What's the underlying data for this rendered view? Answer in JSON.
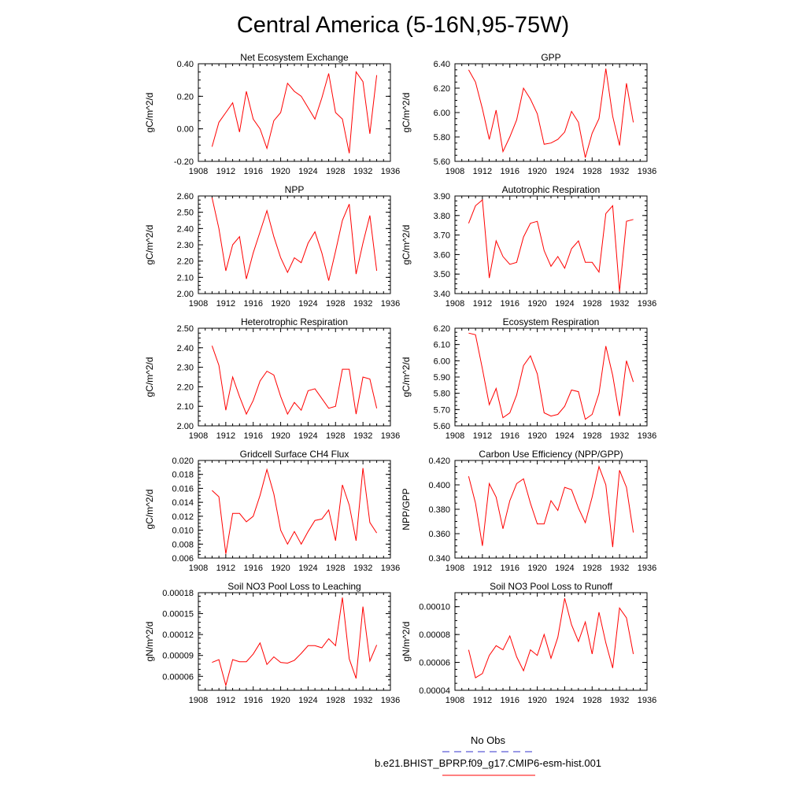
{
  "title": "Central America (5-16N,95-75W)",
  "legend": {
    "entries": [
      {
        "label": "No Obs",
        "color": "#3333cc",
        "dash": true
      },
      {
        "label": "b.e21.BHIST_BPRP.f09_g17.CMIP6-esm-hist.001",
        "color": "#ff0000",
        "dash": false
      }
    ]
  },
  "chart_data": [
    {
      "type": "line",
      "title": "Net Ecosystem Exchange",
      "ylabel": "gC/m^2/d",
      "x_ticks": [
        "1908",
        "1912",
        "1916",
        "1920",
        "1924",
        "1928",
        "1932",
        "1936"
      ],
      "xlim": [
        1908,
        1936
      ],
      "y_ticks": [
        "-0.20",
        "0.00",
        "0.20",
        "0.40"
      ],
      "ylim": [
        -0.2,
        0.4
      ],
      "series": [
        {
          "color": "#ff0000",
          "x": [
            1910,
            1911,
            1912,
            1913,
            1914,
            1915,
            1916,
            1917,
            1918,
            1919,
            1920,
            1921,
            1922,
            1923,
            1924,
            1925,
            1926,
            1927,
            1928,
            1929,
            1930,
            1931,
            1932,
            1933,
            1934
          ],
          "values": [
            -0.11,
            0.04,
            0.1,
            0.16,
            -0.02,
            0.23,
            0.06,
            0.0,
            -0.12,
            0.05,
            0.1,
            0.28,
            0.23,
            0.2,
            0.13,
            0.06,
            0.19,
            0.34,
            0.1,
            0.06,
            -0.15,
            0.35,
            0.29,
            -0.03,
            0.33
          ]
        }
      ]
    },
    {
      "type": "line",
      "title": "GPP",
      "ylabel": "gC/m^2/d",
      "x_ticks": [
        "1908",
        "1912",
        "1916",
        "1920",
        "1924",
        "1928",
        "1932",
        "1936"
      ],
      "xlim": [
        1908,
        1936
      ],
      "y_ticks": [
        "5.60",
        "5.80",
        "6.00",
        "6.20",
        "6.40"
      ],
      "ylim": [
        5.6,
        6.4
      ],
      "series": [
        {
          "color": "#ff0000",
          "x": [
            1910,
            1911,
            1912,
            1913,
            1914,
            1915,
            1916,
            1917,
            1918,
            1919,
            1920,
            1921,
            1922,
            1923,
            1924,
            1925,
            1926,
            1927,
            1928,
            1929,
            1930,
            1931,
            1932,
            1933,
            1934
          ],
          "values": [
            6.35,
            6.25,
            6.03,
            5.78,
            6.02,
            5.68,
            5.8,
            5.94,
            6.2,
            6.11,
            5.99,
            5.74,
            5.75,
            5.78,
            5.84,
            6.01,
            5.92,
            5.63,
            5.83,
            5.95,
            6.36,
            5.97,
            5.73,
            6.24,
            5.92
          ]
        }
      ]
    },
    {
      "type": "line",
      "title": "NPP",
      "ylabel": "gC/m^2/d",
      "x_ticks": [
        "1908",
        "1912",
        "1916",
        "1920",
        "1924",
        "1928",
        "1932",
        "1936"
      ],
      "xlim": [
        1908,
        1936
      ],
      "y_ticks": [
        "2.00",
        "2.10",
        "2.20",
        "2.30",
        "2.40",
        "2.50",
        "2.60"
      ],
      "ylim": [
        2.0,
        2.6
      ],
      "series": [
        {
          "color": "#ff0000",
          "x": [
            1910,
            1911,
            1912,
            1913,
            1914,
            1915,
            1916,
            1917,
            1918,
            1919,
            1920,
            1921,
            1922,
            1923,
            1924,
            1925,
            1926,
            1927,
            1928,
            1929,
            1930,
            1931,
            1932,
            1933,
            1934
          ],
          "values": [
            2.59,
            2.4,
            2.14,
            2.3,
            2.35,
            2.09,
            2.25,
            2.38,
            2.51,
            2.35,
            2.22,
            2.13,
            2.22,
            2.19,
            2.31,
            2.38,
            2.25,
            2.08,
            2.26,
            2.45,
            2.55,
            2.12,
            2.31,
            2.48,
            2.14
          ]
        }
      ]
    },
    {
      "type": "line",
      "title": "Autotrophic Respiration",
      "ylabel": "gC/m^2/d",
      "x_ticks": [
        "1908",
        "1912",
        "1916",
        "1920",
        "1924",
        "1928",
        "1932",
        "1936"
      ],
      "xlim": [
        1908,
        1936
      ],
      "y_ticks": [
        "3.40",
        "3.50",
        "3.60",
        "3.70",
        "3.80",
        "3.90"
      ],
      "ylim": [
        3.4,
        3.9
      ],
      "series": [
        {
          "color": "#ff0000",
          "x": [
            1910,
            1911,
            1912,
            1913,
            1914,
            1915,
            1916,
            1917,
            1918,
            1919,
            1920,
            1921,
            1922,
            1923,
            1924,
            1925,
            1926,
            1927,
            1928,
            1929,
            1930,
            1931,
            1932,
            1933,
            1934
          ],
          "values": [
            3.76,
            3.85,
            3.88,
            3.48,
            3.67,
            3.59,
            3.55,
            3.56,
            3.69,
            3.76,
            3.77,
            3.62,
            3.54,
            3.59,
            3.53,
            3.63,
            3.67,
            3.56,
            3.56,
            3.51,
            3.81,
            3.85,
            3.41,
            3.77,
            3.78
          ]
        }
      ]
    },
    {
      "type": "line",
      "title": "Heterotrophic Respiration",
      "ylabel": "gC/m^2/d",
      "x_ticks": [
        "1908",
        "1912",
        "1916",
        "1920",
        "1924",
        "1928",
        "1932",
        "1936"
      ],
      "xlim": [
        1908,
        1936
      ],
      "y_ticks": [
        "2.00",
        "2.10",
        "2.20",
        "2.30",
        "2.40",
        "2.50"
      ],
      "ylim": [
        2.0,
        2.5
      ],
      "series": [
        {
          "color": "#ff0000",
          "x": [
            1910,
            1911,
            1912,
            1913,
            1914,
            1915,
            1916,
            1917,
            1918,
            1919,
            1920,
            1921,
            1922,
            1923,
            1924,
            1925,
            1926,
            1927,
            1928,
            1929,
            1930,
            1931,
            1932,
            1933,
            1934
          ],
          "values": [
            2.41,
            2.31,
            2.08,
            2.25,
            2.15,
            2.06,
            2.13,
            2.23,
            2.28,
            2.26,
            2.15,
            2.06,
            2.12,
            2.08,
            2.18,
            2.19,
            2.14,
            2.09,
            2.1,
            2.29,
            2.29,
            2.06,
            2.25,
            2.24,
            2.09
          ]
        }
      ]
    },
    {
      "type": "line",
      "title": "Ecosystem Respiration",
      "ylabel": "gC/m^2/d",
      "x_ticks": [
        "1908",
        "1912",
        "1916",
        "1920",
        "1924",
        "1928",
        "1932",
        "1936"
      ],
      "xlim": [
        1908,
        1936
      ],
      "y_ticks": [
        "5.60",
        "5.70",
        "5.80",
        "5.90",
        "6.00",
        "6.10",
        "6.20"
      ],
      "ylim": [
        5.6,
        6.2
      ],
      "series": [
        {
          "color": "#ff0000",
          "x": [
            1910,
            1911,
            1912,
            1913,
            1914,
            1915,
            1916,
            1917,
            1918,
            1919,
            1920,
            1921,
            1922,
            1923,
            1924,
            1925,
            1926,
            1927,
            1928,
            1929,
            1930,
            1931,
            1932,
            1933,
            1934
          ],
          "values": [
            6.17,
            6.16,
            5.95,
            5.73,
            5.83,
            5.65,
            5.68,
            5.79,
            5.97,
            6.03,
            5.92,
            5.68,
            5.66,
            5.67,
            5.72,
            5.82,
            5.81,
            5.64,
            5.67,
            5.8,
            6.09,
            5.91,
            5.66,
            6.0,
            5.87
          ]
        }
      ]
    },
    {
      "type": "line",
      "title": "Gridcell Surface CH4 Flux",
      "ylabel": "gC/m^2/d",
      "x_ticks": [
        "1908",
        "1912",
        "1916",
        "1920",
        "1924",
        "1928",
        "1932",
        "1936"
      ],
      "xlim": [
        1908,
        1936
      ],
      "y_ticks": [
        "0.006",
        "0.008",
        "0.010",
        "0.012",
        "0.014",
        "0.016",
        "0.018",
        "0.020"
      ],
      "ylim": [
        0.006,
        0.02
      ],
      "series": [
        {
          "color": "#ff0000",
          "x": [
            1910,
            1911,
            1912,
            1913,
            1914,
            1915,
            1916,
            1917,
            1918,
            1919,
            1920,
            1921,
            1922,
            1923,
            1924,
            1925,
            1926,
            1927,
            1928,
            1929,
            1930,
            1931,
            1932,
            1933,
            1934
          ],
          "values": [
            0.0157,
            0.0148,
            0.0066,
            0.0124,
            0.0124,
            0.0112,
            0.012,
            0.015,
            0.0187,
            0.0152,
            0.01,
            0.008,
            0.0098,
            0.008,
            0.0098,
            0.0114,
            0.0116,
            0.0129,
            0.0085,
            0.0165,
            0.0136,
            0.0085,
            0.0189,
            0.0111,
            0.0096
          ]
        }
      ]
    },
    {
      "type": "line",
      "title": "Carbon Use Efficiency (NPP/GPP)",
      "ylabel": "NPP/GPP",
      "x_ticks": [
        "1908",
        "1912",
        "1916",
        "1920",
        "1924",
        "1928",
        "1932",
        "1936"
      ],
      "xlim": [
        1908,
        1936
      ],
      "y_ticks": [
        "0.340",
        "0.360",
        "0.380",
        "0.400",
        "0.420"
      ],
      "ylim": [
        0.34,
        0.42
      ],
      "series": [
        {
          "color": "#ff0000",
          "x": [
            1910,
            1911,
            1912,
            1913,
            1914,
            1915,
            1916,
            1917,
            1918,
            1919,
            1920,
            1921,
            1922,
            1923,
            1924,
            1925,
            1926,
            1927,
            1928,
            1929,
            1930,
            1931,
            1932,
            1933,
            1934
          ],
          "values": [
            0.407,
            0.385,
            0.35,
            0.401,
            0.39,
            0.364,
            0.387,
            0.401,
            0.405,
            0.385,
            0.368,
            0.368,
            0.387,
            0.379,
            0.398,
            0.396,
            0.381,
            0.369,
            0.39,
            0.415,
            0.4,
            0.349,
            0.412,
            0.398,
            0.361
          ]
        }
      ]
    },
    {
      "type": "line",
      "title": "Soil NO3 Pool Loss to Leaching",
      "ylabel": "gN/m^2/d",
      "x_ticks": [
        "1908",
        "1912",
        "1916",
        "1920",
        "1924",
        "1928",
        "1932",
        "1936"
      ],
      "xlim": [
        1908,
        1936
      ],
      "y_ticks": [
        "0.00006",
        "0.00009",
        "0.00012",
        "0.00015",
        "0.00018"
      ],
      "ylim": [
        4e-05,
        0.00018
      ],
      "series": [
        {
          "color": "#ff0000",
          "x": [
            1910,
            1911,
            1912,
            1913,
            1914,
            1915,
            1916,
            1917,
            1918,
            1919,
            1920,
            1921,
            1922,
            1923,
            1924,
            1925,
            1926,
            1927,
            1928,
            1929,
            1930,
            1931,
            1932,
            1933,
            1934
          ],
          "values": [
            8e-05,
            8.4e-05,
            4.7e-05,
            8.4e-05,
            8.1e-05,
            8.1e-05,
            9.2e-05,
            0.000108,
            7.7e-05,
            8.8e-05,
            8e-05,
            7.9e-05,
            8.3e-05,
            9.3e-05,
            0.000104,
            0.000104,
            0.000101,
            0.000114,
            0.000104,
            0.000173,
            8.5e-05,
            5.7e-05,
            0.00016,
            8.2e-05,
            0.000105
          ]
        }
      ]
    },
    {
      "type": "line",
      "title": "Soil NO3 Pool Loss to Runoff",
      "ylabel": "gN/m^2/d",
      "x_ticks": [
        "1908",
        "1912",
        "1916",
        "1920",
        "1924",
        "1928",
        "1932",
        "1936"
      ],
      "xlim": [
        1908,
        1936
      ],
      "y_ticks": [
        "0.00004",
        "0.00006",
        "0.00008",
        "0.00010"
      ],
      "ylim": [
        4e-05,
        0.00011
      ],
      "series": [
        {
          "color": "#ff0000",
          "x": [
            1910,
            1911,
            1912,
            1913,
            1914,
            1915,
            1916,
            1917,
            1918,
            1919,
            1920,
            1921,
            1922,
            1923,
            1924,
            1925,
            1926,
            1927,
            1928,
            1929,
            1930,
            1931,
            1932,
            1933,
            1934
          ],
          "values": [
            6.9e-05,
            4.9e-05,
            5.2e-05,
            6.5e-05,
            7.2e-05,
            6.9e-05,
            7.9e-05,
            6.4e-05,
            5.4e-05,
            6.9e-05,
            6.5e-05,
            8e-05,
            6.3e-05,
            7.8e-05,
            0.000106,
            8.7e-05,
            7.5e-05,
            8.9e-05,
            6.6e-05,
            9.6e-05,
            7.4e-05,
            5.6e-05,
            9.9e-05,
            9.2e-05,
            6.6e-05
          ]
        }
      ]
    }
  ]
}
